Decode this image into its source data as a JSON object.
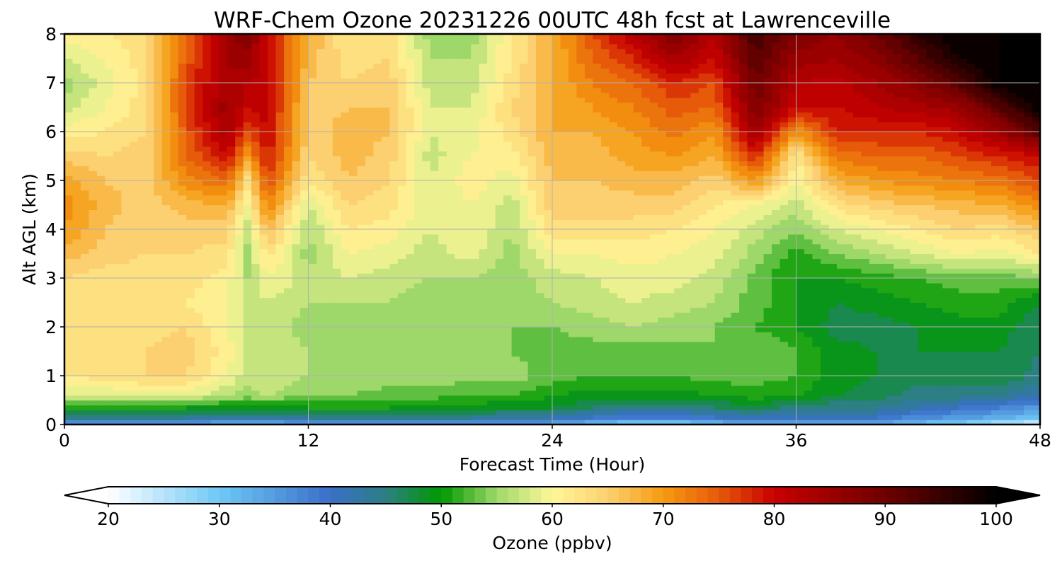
{
  "chart_data": {
    "type": "heatmap",
    "title": "WRF-Chem Ozone  20231226 00UTC 48h fcst at Lawrenceville",
    "xlabel": "Forecast Time (Hour)",
    "ylabel": "Alt AGL (km)",
    "x_ticks": [
      "0",
      "12",
      "24",
      "36",
      "48"
    ],
    "y_ticks": [
      "0",
      "1",
      "2",
      "3",
      "4",
      "5",
      "6",
      "7",
      "8"
    ],
    "xlim": [
      0,
      48
    ],
    "ylim": [
      0,
      8
    ],
    "grid": true,
    "colorbar": {
      "label": "Ozone  (ppbv)",
      "ticks": [
        "20",
        "30",
        "40",
        "50",
        "60",
        "70",
        "80",
        "90",
        "100"
      ],
      "range": [
        20,
        100
      ],
      "extend": "both",
      "stops": [
        {
          "v": 20,
          "c": "#ffffff"
        },
        {
          "v": 30,
          "c": "#6ec8f5"
        },
        {
          "v": 40,
          "c": "#3a6fc8"
        },
        {
          "v": 45,
          "c": "#2c7f83"
        },
        {
          "v": 50,
          "c": "#009900"
        },
        {
          "v": 55,
          "c": "#9fd86a"
        },
        {
          "v": 60,
          "c": "#fff799"
        },
        {
          "v": 65,
          "c": "#fcd070"
        },
        {
          "v": 70,
          "c": "#f59a10"
        },
        {
          "v": 75,
          "c": "#e65a0a"
        },
        {
          "v": 80,
          "c": "#c80000"
        },
        {
          "v": 90,
          "c": "#6e0000"
        },
        {
          "v": 100,
          "c": "#000000"
        }
      ]
    },
    "heights_km": [
      0,
      0.15,
      0.35,
      0.6,
      1,
      1.5,
      2,
      2.5,
      3,
      3.5,
      4,
      4.5,
      5,
      5.5,
      6,
      6.5,
      7,
      7.5,
      8
    ],
    "hours": [
      0,
      2,
      4,
      6,
      8,
      9,
      10,
      12,
      14,
      16,
      18,
      20,
      22,
      24,
      26,
      28,
      30,
      32,
      34,
      36,
      38,
      40,
      42,
      44,
      46,
      48
    ],
    "ozone_ppbv": [
      [
        33,
        33,
        33,
        33,
        32,
        32,
        32,
        33,
        33,
        33,
        33,
        33,
        33,
        33,
        30,
        28,
        28,
        30,
        33,
        33,
        33,
        33,
        30,
        28,
        25,
        22
      ],
      [
        44,
        44,
        44,
        44,
        43,
        43,
        43,
        44,
        44,
        44,
        44,
        44,
        43,
        42,
        40,
        38,
        38,
        40,
        42,
        40,
        40,
        40,
        37,
        35,
        33,
        30
      ],
      [
        50,
        50,
        50,
        50,
        49,
        49,
        49,
        50,
        50,
        50,
        49,
        49,
        48,
        48,
        46,
        45,
        45,
        46,
        47,
        45,
        44,
        44,
        42,
        40,
        38,
        35
      ],
      [
        58,
        58,
        59,
        59,
        56,
        55,
        56,
        54,
        54,
        53,
        53,
        52,
        52,
        50,
        49,
        49,
        49,
        50,
        51,
        50,
        48,
        47,
        45,
        45,
        44,
        42
      ],
      [
        62,
        63,
        64,
        64,
        60,
        57,
        58,
        56,
        56,
        55,
        55,
        55,
        55,
        53,
        52,
        52,
        52,
        53,
        53,
        52,
        49,
        48,
        47,
        47,
        48,
        45
      ],
      [
        63,
        64,
        64,
        65,
        61,
        58,
        58,
        56,
        55,
        55,
        55,
        54,
        54,
        53,
        53,
        53,
        53,
        54,
        54,
        52,
        49,
        48,
        48,
        48,
        48,
        46
      ],
      [
        63,
        63,
        63,
        64,
        60,
        57,
        57,
        55,
        55,
        55,
        54,
        54,
        54,
        54,
        55,
        56,
        55,
        54,
        52,
        50,
        47,
        47,
        48,
        49,
        49,
        46
      ],
      [
        62,
        62,
        62,
        62,
        60,
        57,
        58,
        56,
        56,
        56,
        54,
        55,
        55,
        56,
        57,
        58,
        57,
        56,
        53,
        50,
        48,
        49,
        50,
        51,
        51,
        48
      ],
      [
        64,
        63,
        63,
        63,
        61,
        56,
        60,
        57,
        58,
        57,
        56,
        56,
        55,
        57,
        58,
        59,
        59,
        57,
        53,
        50,
        50,
        51,
        52,
        53,
        53,
        54
      ],
      [
        67,
        65,
        64,
        64,
        63,
        55,
        63,
        55,
        60,
        59,
        57,
        59,
        55,
        60,
        60,
        61,
        60,
        59,
        55,
        51,
        54,
        56,
        58,
        60,
        59,
        62
      ],
      [
        70,
        66,
        64,
        65,
        65,
        57,
        67,
        56,
        62,
        61,
        58,
        60,
        56,
        63,
        63,
        63,
        62,
        60,
        57,
        54,
        58,
        60,
        62,
        64,
        63,
        66
      ],
      [
        71,
        67,
        65,
        67,
        68,
        60,
        72,
        58,
        64,
        63,
        58,
        60,
        57,
        65,
        65,
        65,
        65,
        62,
        60,
        57,
        63,
        65,
        66,
        67,
        68,
        71
      ],
      [
        69,
        66,
        65,
        71,
        74,
        63,
        76,
        62,
        66,
        64,
        58,
        61,
        59,
        66,
        66,
        67,
        67,
        65,
        70,
        60,
        68,
        70,
        71,
        72,
        73,
        76
      ],
      [
        65,
        64,
        65,
        74,
        80,
        70,
        79,
        64,
        67,
        65,
        57,
        60,
        61,
        67,
        67,
        69,
        70,
        68,
        78,
        62,
        73,
        74,
        74,
        76,
        78,
        80
      ],
      [
        61,
        62,
        64,
        75,
        84,
        76,
        80,
        65,
        67,
        66,
        58,
        59,
        63,
        68,
        68,
        70,
        73,
        70,
        85,
        70,
        78,
        78,
        78,
        80,
        85,
        92
      ],
      [
        57,
        60,
        63,
        76,
        85,
        80,
        81,
        65,
        66,
        66,
        58,
        58,
        64,
        68,
        70,
        72,
        75,
        74,
        88,
        80,
        80,
        82,
        83,
        85,
        92,
        100
      ],
      [
        55,
        59,
        63,
        76,
        84,
        82,
        81,
        66,
        64,
        65,
        57,
        57,
        63,
        68,
        72,
        74,
        78,
        76,
        90,
        82,
        81,
        84,
        87,
        92,
        100,
        100
      ],
      [
        58,
        60,
        63,
        75,
        84,
        85,
        80,
        67,
        63,
        64,
        56,
        56,
        62,
        68,
        74,
        78,
        84,
        80,
        92,
        85,
        84,
        87,
        92,
        98,
        100,
        100
      ],
      [
        61,
        62,
        63,
        73,
        85,
        88,
        80,
        68,
        62,
        63,
        55,
        55,
        62,
        68,
        76,
        82,
        88,
        82,
        94,
        88,
        86,
        90,
        96,
        100,
        100,
        100
      ]
    ]
  }
}
